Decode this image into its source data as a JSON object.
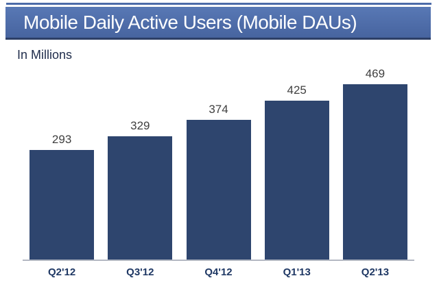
{
  "title_bar": {
    "title": "Mobile Daily Active Users (Mobile DAUs)"
  },
  "subtitle": "In Millions",
  "chart_data": {
    "type": "bar",
    "title": "Mobile Daily Active Users (Mobile DAUs)",
    "subtitle": "In Millions",
    "unit": "millions of users",
    "categories": [
      "Q2'12",
      "Q3'12",
      "Q4'12",
      "Q1'13",
      "Q2'13"
    ],
    "values": [
      293,
      329,
      374,
      425,
      469
    ],
    "data_labels": true,
    "grid": false,
    "legend": false,
    "y_axis_shown": false,
    "ylim": [
      0,
      515
    ],
    "colors": {
      "bar": "#2e456e",
      "title_bar_top": "#5878b5",
      "title_bar_bottom": "#47649f",
      "title_bar_border": "#2d3f66",
      "top_rule": "#4c6ba8",
      "axis_line": "#b3b8c2",
      "value_label": "#3f3f3f",
      "tick_label": "#1f3864",
      "subtitle_text": "#1e2b4a",
      "title_text": "#ffffff"
    }
  }
}
